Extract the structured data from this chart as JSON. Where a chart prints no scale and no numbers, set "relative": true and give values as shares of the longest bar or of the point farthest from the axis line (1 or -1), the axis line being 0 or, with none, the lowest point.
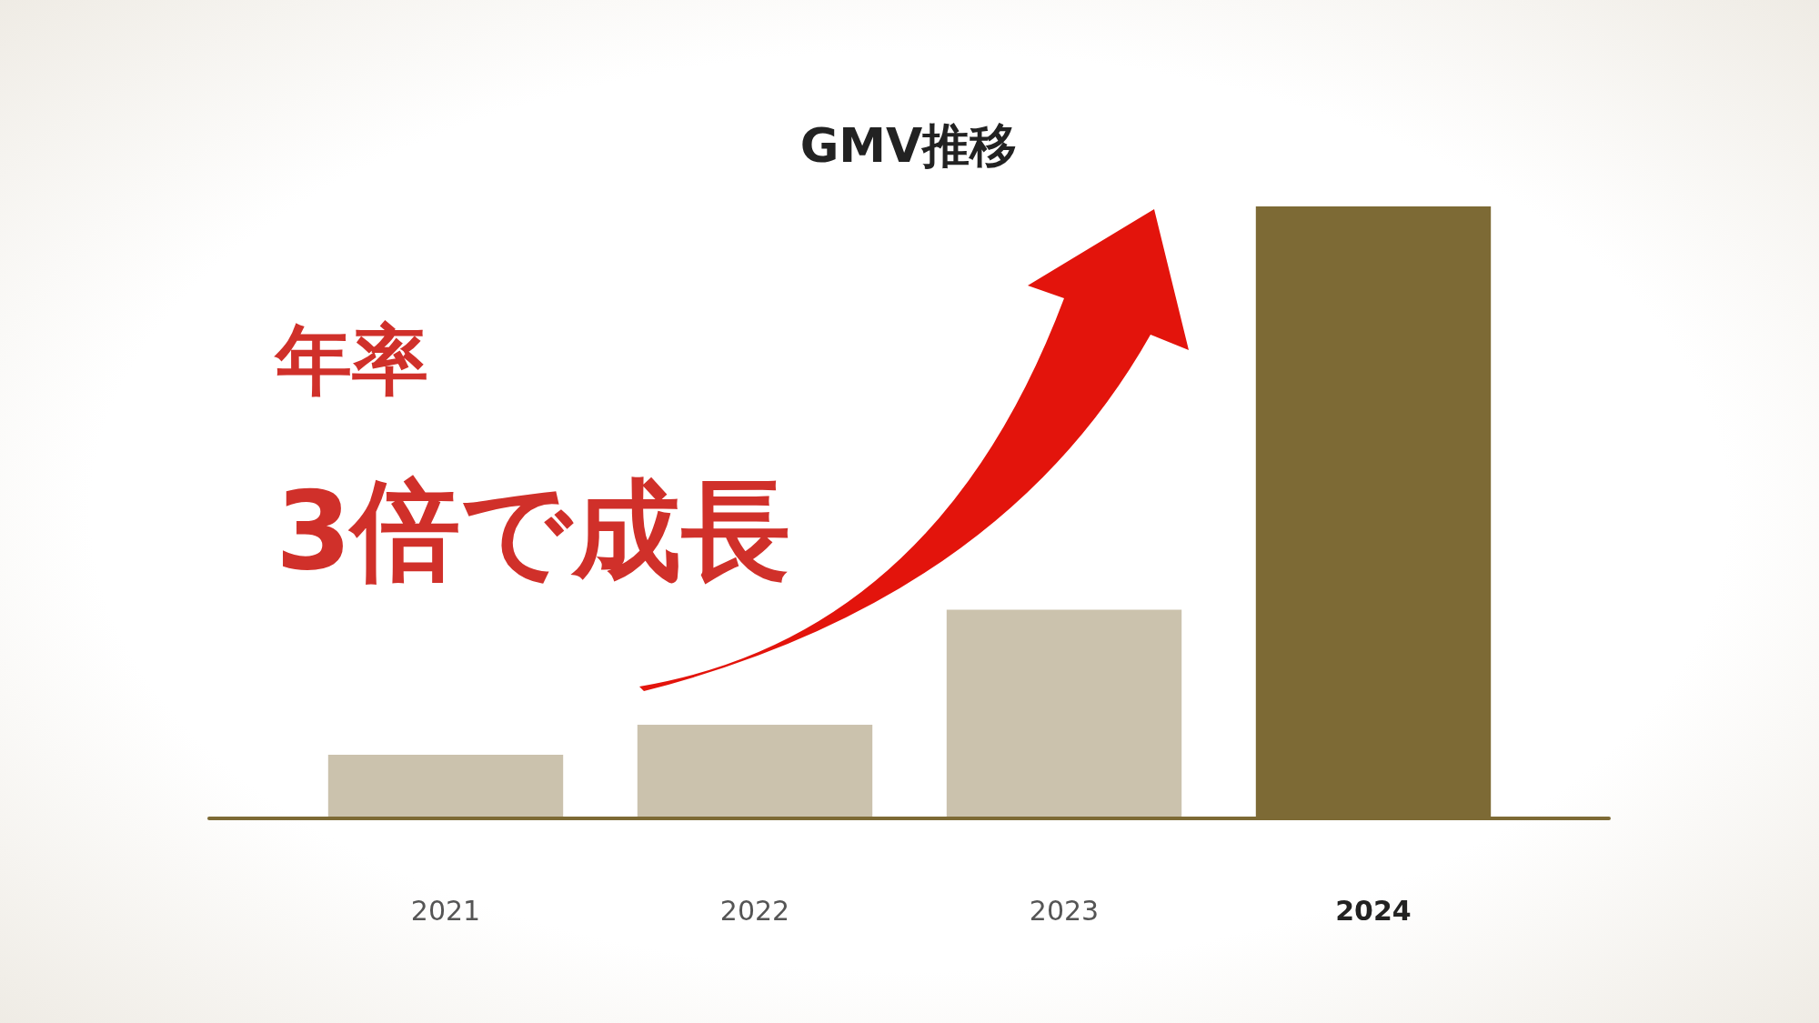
{
  "chart_data": {
    "type": "bar",
    "title": "GMV推移",
    "relative": true,
    "categories": [
      "2021",
      "2022",
      "2023",
      "2024"
    ],
    "values": [
      0.104,
      0.153,
      0.341,
      1
    ],
    "colors": [
      "#cbc2ad",
      "#cbc2ad",
      "#cbc2ad",
      "#7d6a35"
    ],
    "annotations": [
      "年率",
      "3倍で成長"
    ]
  }
}
